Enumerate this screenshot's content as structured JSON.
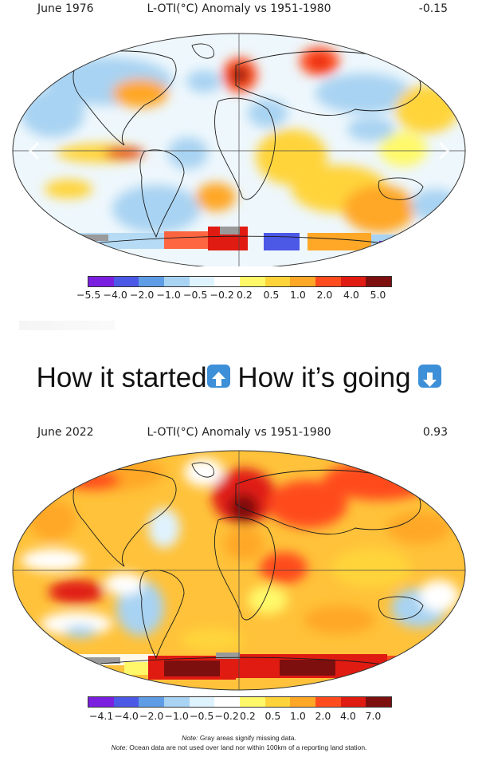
{
  "top_map": {
    "date": "June 1976",
    "title": "L-OTI(°C) Anomaly vs 1951-1980",
    "global_anomaly": "-0.15",
    "colorbar": {
      "colors": [
        "#7a1fe0",
        "#4c58e6",
        "#5e9de6",
        "#a8d3f2",
        "#dff3ff",
        "#ffffff",
        "#fff96a",
        "#ffd43a",
        "#ffa726",
        "#ff4c1f",
        "#e01b12",
        "#7d0f0f"
      ],
      "ticks": [
        "−5.5",
        "−4.0",
        "−2.0",
        "−1.0",
        "−0.5",
        "−0.2",
        "0.2",
        "0.5",
        "1.0",
        "2.0",
        "4.0",
        "5.0"
      ]
    }
  },
  "caption": {
    "started": "How it started",
    "going": "How it’s going"
  },
  "bottom_map": {
    "date": "June 2022",
    "title": "L-OTI(°C) Anomaly vs 1951-1980",
    "global_anomaly": "0.93",
    "colorbar": {
      "colors": [
        "#7a1fe0",
        "#4c58e6",
        "#5e9de6",
        "#a8d3f2",
        "#dff3ff",
        "#ffffff",
        "#fff96a",
        "#ffd43a",
        "#ffa726",
        "#ff4c1f",
        "#e01b12",
        "#7d0f0f"
      ],
      "ticks": [
        "−4.1",
        "−4.0",
        "−2.0",
        "−1.0",
        "−0.5",
        "−0.2",
        "0.2",
        "0.5",
        "1.0",
        "2.0",
        "4.0",
        "7.0"
      ]
    }
  },
  "notes": {
    "note1_label": "Note:",
    "note1_text": " Gray areas signify missing data.",
    "note2_label": "Note:",
    "note2_text": " Ocean data are not used over land nor within 100km of a reporting land station."
  },
  "icons": [
    "chevron-left-icon",
    "chevron-right-icon",
    "up-arrow-icon",
    "down-arrow-icon"
  ]
}
